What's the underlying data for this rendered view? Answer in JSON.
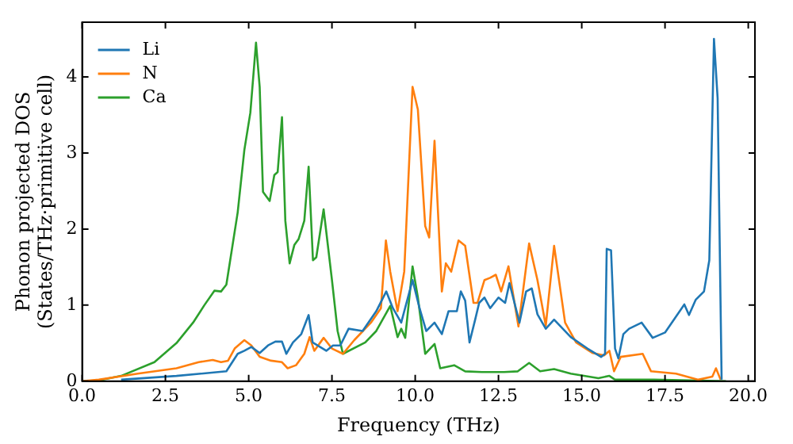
{
  "chart_data": {
    "type": "line",
    "xlabel": "Frequency (THz)",
    "ylabel": "Phonon projected DOS\n(States/THz·primitive cell)",
    "xlim": [
      0,
      20.2
    ],
    "ylim": [
      0,
      4.72
    ],
    "xticks": [
      {
        "value": 0,
        "label": "0.0"
      },
      {
        "value": 2.5,
        "label": "2.5"
      },
      {
        "value": 5,
        "label": "5.0"
      },
      {
        "value": 7.5,
        "label": "7.5"
      },
      {
        "value": 10,
        "label": "10.0"
      },
      {
        "value": 12.5,
        "label": "12.5"
      },
      {
        "value": 15,
        "label": "15.0"
      },
      {
        "value": 17.5,
        "label": "17.5"
      },
      {
        "value": 20,
        "label": "20.0"
      }
    ],
    "yticks": [
      0,
      1,
      2,
      3,
      4
    ],
    "grid": false,
    "legend": "top left",
    "marker": "none",
    "line_style": "solid",
    "series": [
      {
        "name": "Li",
        "color": "#1f77b4",
        "x": [
          1.17,
          2.83,
          4.33,
          4.67,
          4.87,
          5.08,
          5.33,
          5.58,
          5.8,
          6.0,
          6.13,
          6.33,
          6.58,
          6.8,
          6.92,
          7.33,
          7.53,
          7.75,
          8.0,
          8.42,
          8.83,
          9.13,
          9.33,
          9.58,
          9.92,
          10.13,
          10.33,
          10.58,
          10.8,
          11.0,
          11.25,
          11.37,
          11.5,
          11.63,
          11.8,
          11.92,
          12.08,
          12.25,
          12.5,
          12.7,
          12.83,
          13.13,
          13.33,
          13.5,
          13.67,
          13.92,
          14.17,
          14.67,
          15.17,
          15.58,
          15.7,
          15.75,
          15.88,
          16.0,
          16.1,
          16.25,
          16.42,
          16.8,
          17.13,
          17.5,
          18.08,
          18.22,
          18.42,
          18.67,
          18.83,
          18.97,
          19.08,
          19.2
        ],
        "values": [
          0.02,
          0.07,
          0.13,
          0.36,
          0.4,
          0.45,
          0.37,
          0.47,
          0.52,
          0.52,
          0.36,
          0.51,
          0.62,
          0.87,
          0.51,
          0.4,
          0.47,
          0.47,
          0.69,
          0.66,
          0.92,
          1.18,
          0.96,
          0.77,
          1.33,
          0.96,
          0.66,
          0.77,
          0.62,
          0.92,
          0.92,
          1.18,
          1.06,
          0.51,
          0.81,
          1.03,
          1.1,
          0.96,
          1.1,
          1.03,
          1.29,
          0.77,
          1.18,
          1.22,
          0.88,
          0.69,
          0.81,
          0.58,
          0.43,
          0.32,
          0.36,
          1.74,
          1.72,
          0.43,
          0.3,
          0.62,
          0.69,
          0.77,
          0.57,
          0.64,
          1.01,
          0.87,
          1.07,
          1.18,
          1.59,
          4.5,
          3.72,
          0.02
        ]
      },
      {
        "name": "N",
        "color": "#ff7f0e",
        "x": [
          0,
          0.5,
          1.67,
          2.83,
          3.5,
          3.92,
          4.17,
          4.38,
          4.58,
          4.87,
          5.08,
          5.33,
          5.67,
          6.0,
          6.17,
          6.42,
          6.67,
          6.83,
          6.97,
          7.25,
          7.5,
          7.83,
          8.17,
          8.67,
          8.97,
          9.12,
          9.25,
          9.47,
          9.67,
          9.92,
          10.08,
          10.3,
          10.42,
          10.58,
          10.8,
          10.92,
          11.08,
          11.3,
          11.5,
          11.75,
          11.87,
          12.08,
          12.25,
          12.42,
          12.58,
          12.8,
          13.1,
          13.42,
          13.67,
          13.92,
          14.17,
          14.5,
          14.83,
          15.33,
          15.67,
          15.83,
          15.97,
          16.17,
          16.83,
          17.08,
          17.83,
          18.5,
          18.92,
          19.03,
          19.17
        ],
        "values": [
          0,
          0.02,
          0.1,
          0.17,
          0.25,
          0.28,
          0.25,
          0.27,
          0.43,
          0.54,
          0.47,
          0.32,
          0.27,
          0.25,
          0.17,
          0.21,
          0.36,
          0.58,
          0.4,
          0.57,
          0.43,
          0.36,
          0.54,
          0.77,
          0.96,
          1.85,
          1.44,
          0.92,
          1.44,
          3.87,
          3.57,
          2.04,
          1.89,
          3.16,
          1.18,
          1.55,
          1.44,
          1.85,
          1.78,
          1.03,
          1.03,
          1.33,
          1.36,
          1.4,
          1.18,
          1.51,
          0.72,
          1.81,
          1.33,
          0.73,
          1.78,
          0.77,
          0.51,
          0.37,
          0.34,
          0.4,
          0.13,
          0.32,
          0.36,
          0.13,
          0.1,
          0.02,
          0.06,
          0.17,
          0.02
        ]
      },
      {
        "name": "Ca",
        "color": "#2ca02c",
        "x": [
          0,
          0.5,
          1.17,
          2.17,
          2.83,
          3.33,
          3.67,
          3.97,
          4.17,
          4.33,
          4.67,
          4.87,
          5.05,
          5.22,
          5.33,
          5.43,
          5.63,
          5.77,
          5.87,
          6.0,
          6.1,
          6.23,
          6.37,
          6.5,
          6.67,
          6.8,
          6.93,
          7.03,
          7.25,
          7.5,
          7.67,
          7.83,
          8.5,
          8.83,
          9.25,
          9.47,
          9.58,
          9.7,
          9.92,
          10.08,
          10.3,
          10.58,
          10.75,
          11.17,
          11.5,
          12,
          12.67,
          13.08,
          13.42,
          13.75,
          14.17,
          14.67,
          15.5,
          15.83,
          16,
          17.17,
          19.33
        ],
        "values": [
          0,
          0.01,
          0.07,
          0.25,
          0.5,
          0.77,
          1.0,
          1.19,
          1.18,
          1.27,
          2.22,
          3.04,
          3.53,
          4.45,
          3.87,
          2.49,
          2.37,
          2.71,
          2.75,
          3.47,
          2.11,
          1.55,
          1.79,
          1.87,
          2.11,
          2.82,
          1.59,
          1.63,
          2.26,
          1.33,
          0.66,
          0.36,
          0.51,
          0.66,
          0.99,
          0.58,
          0.69,
          0.57,
          1.51,
          1.1,
          0.36,
          0.49,
          0.17,
          0.21,
          0.13,
          0.12,
          0.12,
          0.13,
          0.24,
          0.13,
          0.16,
          0.1,
          0.04,
          0.07,
          0.02,
          0.02,
          0
        ]
      }
    ]
  }
}
